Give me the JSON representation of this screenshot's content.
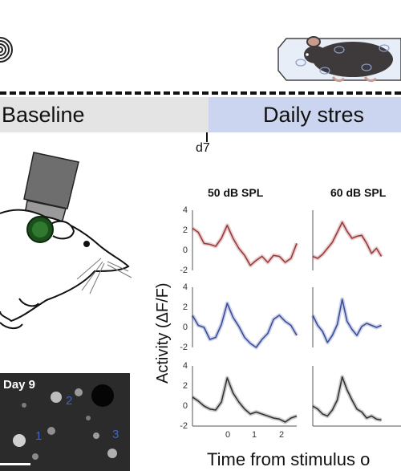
{
  "timeline": {
    "baseline_label": "Baseline",
    "stress_label": "Daily stres",
    "day_tick_label": "d7"
  },
  "colors": {
    "baseline_bg": "#e4e4e4",
    "stress_bg": "#cbd5f0",
    "trace_50_red": "#9b3a3a",
    "trace_blue": "#3a4d9b",
    "trace_black": "#333333"
  },
  "icons": {
    "sound": "sound-wave-icon",
    "restraint": "restrained-mouse-icon",
    "imaging": "imaging-mouse-icon"
  },
  "microscope": {
    "day_label": "Day 9",
    "cell_labels": [
      "1",
      "2",
      "3"
    ]
  },
  "chart": {
    "columns": [
      "50 dB SPL",
      "60 dB SPL"
    ],
    "y_ticks": [
      "4",
      "2",
      "0",
      "-2"
    ],
    "x_ticks": [
      "0",
      "1",
      "2"
    ],
    "ylabel": "Activity (ΔF/F)",
    "xlabel": "Time from stimulus o"
  },
  "chart_data": {
    "type": "line",
    "ylim": [
      -2,
      4
    ],
    "xlim": [
      -1,
      2.6
    ],
    "grid": false,
    "panels": [
      {
        "column": "50 dB SPL",
        "row": 1,
        "color": "#9b3a3a",
        "x": [
          -1,
          -0.8,
          -0.6,
          -0.4,
          -0.2,
          0,
          0.2,
          0.4,
          0.6,
          0.8,
          1,
          1.2,
          1.4,
          1.6,
          1.8,
          2,
          2.2,
          2.4,
          2.6
        ],
        "y": [
          2.2,
          1.8,
          0.7,
          0.6,
          0.4,
          1.2,
          2.5,
          1.2,
          0.2,
          -0.5,
          -1.5,
          -1.0,
          -0.6,
          -1.2,
          -0.5,
          -0.6,
          -1.2,
          -0.8,
          0.7
        ]
      },
      {
        "column": "50 dB SPL",
        "row": 2,
        "color": "#3a4d9b",
        "x": [
          -1,
          -0.8,
          -0.6,
          -0.4,
          -0.2,
          0,
          0.2,
          0.4,
          0.6,
          0.8,
          1,
          1.2,
          1.4,
          1.6,
          1.8,
          2,
          2.2,
          2.4,
          2.6
        ],
        "y": [
          1.2,
          0.2,
          0.0,
          -1.2,
          -1.0,
          0.3,
          2.4,
          1.0,
          0.1,
          -1.0,
          -1.6,
          -2.0,
          -1.2,
          -0.6,
          0.8,
          1.2,
          0.6,
          0.2,
          -0.8
        ]
      },
      {
        "column": "50 dB SPL",
        "row": 3,
        "color": "#333333",
        "x": [
          -1,
          -0.8,
          -0.6,
          -0.4,
          -0.2,
          0,
          0.2,
          0.4,
          0.6,
          0.8,
          1,
          1.2,
          1.4,
          1.6,
          1.8,
          2,
          2.2,
          2.4,
          2.6
        ],
        "y": [
          0.9,
          0.5,
          0.0,
          -0.3,
          -0.4,
          0.4,
          2.8,
          1.3,
          0.4,
          -0.3,
          -0.8,
          -0.6,
          -0.8,
          -1.0,
          -1.2,
          -1.3,
          -1.6,
          -1.2,
          -1.0
        ]
      },
      {
        "column": "60 dB SPL",
        "row": 1,
        "color": "#9b3a3a",
        "x": [
          -1,
          -0.8,
          -0.6,
          -0.4,
          -0.2,
          0,
          0.2,
          0.4,
          0.6,
          0.8,
          1,
          1.2,
          1.4,
          1.6,
          1.8
        ],
        "y": [
          -0.6,
          -0.8,
          -0.4,
          0.2,
          0.8,
          1.8,
          2.8,
          1.9,
          1.2,
          1.4,
          1.5,
          0.7,
          -0.3,
          0.2,
          -0.6
        ]
      },
      {
        "column": "60 dB SPL",
        "row": 2,
        "color": "#3a4d9b",
        "x": [
          -1,
          -0.8,
          -0.6,
          -0.4,
          -0.2,
          0,
          0.2,
          0.4,
          0.6,
          0.8,
          1,
          1.2,
          1.4,
          1.6,
          1.8
        ],
        "y": [
          1.2,
          0.2,
          -0.4,
          -1.5,
          -0.8,
          0.3,
          2.8,
          0.6,
          -0.2,
          -0.8,
          0.1,
          0.4,
          0.2,
          0.0,
          0.2
        ]
      },
      {
        "column": "60 dB SPL",
        "row": 3,
        "color": "#333333",
        "x": [
          -1,
          -0.8,
          -0.6,
          -0.4,
          -0.2,
          0,
          0.2,
          0.4,
          0.6,
          0.8,
          1,
          1.2,
          1.4,
          1.6,
          1.8
        ],
        "y": [
          0.0,
          -0.3,
          -0.8,
          -1.0,
          -0.4,
          0.6,
          2.9,
          1.6,
          0.6,
          -0.3,
          -0.6,
          -1.2,
          -1.0,
          -1.3,
          -1.4
        ]
      }
    ]
  }
}
